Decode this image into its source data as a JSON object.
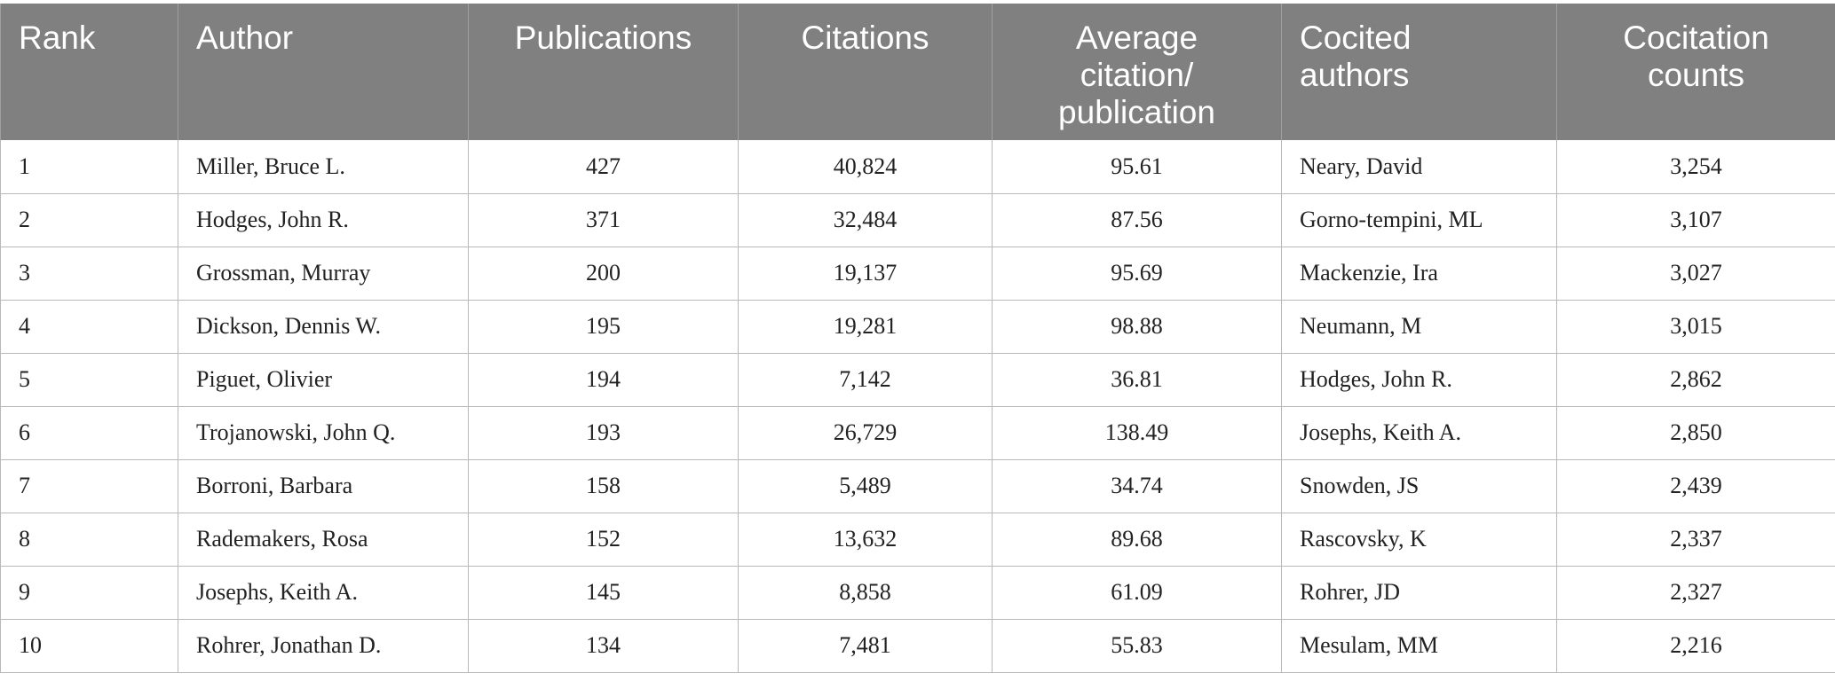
{
  "chart_data": {
    "type": "table",
    "columns": [
      "Rank",
      "Author",
      "Publications",
      "Citations",
      "Average citation/ publication",
      "Cocited authors",
      "Cocitation counts"
    ],
    "rows": [
      [
        "1",
        "Miller, Bruce L.",
        "427",
        "40,824",
        "95.61",
        "Neary, David",
        "3,254"
      ],
      [
        "2",
        "Hodges, John R.",
        "371",
        "32,484",
        "87.56",
        "Gorno-tempini, ML",
        "3,107"
      ],
      [
        "3",
        "Grossman, Murray",
        "200",
        "19,137",
        "95.69",
        "Mackenzie, Ira",
        "3,027"
      ],
      [
        "4",
        "Dickson, Dennis W.",
        "195",
        "19,281",
        "98.88",
        "Neumann, M",
        "3,015"
      ],
      [
        "5",
        "Piguet, Olivier",
        "194",
        "7,142",
        "36.81",
        "Hodges, John R.",
        "2,862"
      ],
      [
        "6",
        "Trojanowski, John Q.",
        "193",
        "26,729",
        "138.49",
        "Josephs, Keith A.",
        "2,850"
      ],
      [
        "7",
        "Borroni, Barbara",
        "158",
        "5,489",
        "34.74",
        "Snowden, JS",
        "2,439"
      ],
      [
        "8",
        "Rademakers, Rosa",
        "152",
        "13,632",
        "89.68",
        "Rascovsky, K",
        "2,337"
      ],
      [
        "9",
        "Josephs, Keith A.",
        "145",
        "8,858",
        "61.09",
        "Rohrer, JD",
        "2,327"
      ],
      [
        "10",
        "Rohrer, Jonathan D.",
        "134",
        "7,481",
        "55.83",
        "Mesulam, MM",
        "2,216"
      ]
    ]
  },
  "header": {
    "rank": "Rank",
    "author": "Author",
    "publications": "Publications",
    "citations": "Citations",
    "avg_line1": "Average",
    "avg_line2": "citation/",
    "avg_line3": "publication",
    "cocited_line1": "Cocited",
    "cocited_line2": "authors",
    "cocount_line1": "Cocitation",
    "cocount_line2": "counts"
  },
  "colors": {
    "header_bg": "#808080",
    "header_text": "#ffffff",
    "grid": "#b9b9b9"
  }
}
